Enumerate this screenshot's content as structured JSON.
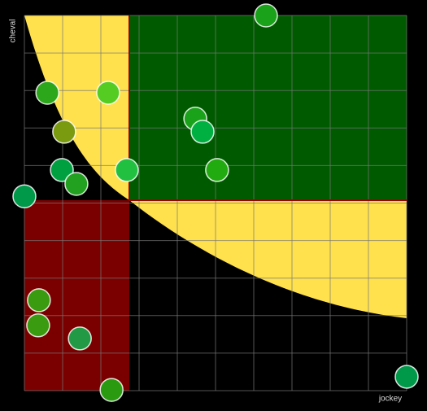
{
  "chart_data": {
    "type": "scatter",
    "x_label": "jockey",
    "y_label": "cheval",
    "xlim": [
      0,
      10
    ],
    "ylim": [
      0,
      10
    ],
    "grid": true,
    "x": [
      6.32,
      0.6,
      2.19,
      1.04,
      4.47,
      4.66,
      0.98,
      1.36,
      2.68,
      5.04,
      0,
      0.38,
      0.36,
      1.45,
      2.28,
      10
    ],
    "values": [
      10,
      7.94,
      7.94,
      6.9,
      7.25,
      6.9,
      5.88,
      5.51,
      5.88,
      5.88,
      5.18,
      2.41,
      1.74,
      1.39,
      0.02,
      0.37
    ],
    "colors": [
      "#1aa31a",
      "#2ca61a",
      "#55cc22",
      "#7a9a10",
      "#1aa31a",
      "#00b040",
      "#00a040",
      "#22a020",
      "#22c040",
      "#22aa11",
      "#00994a",
      "#3a9a10",
      "#3a9a10",
      "#229944",
      "#2a9a10",
      "#00994a"
    ]
  }
}
